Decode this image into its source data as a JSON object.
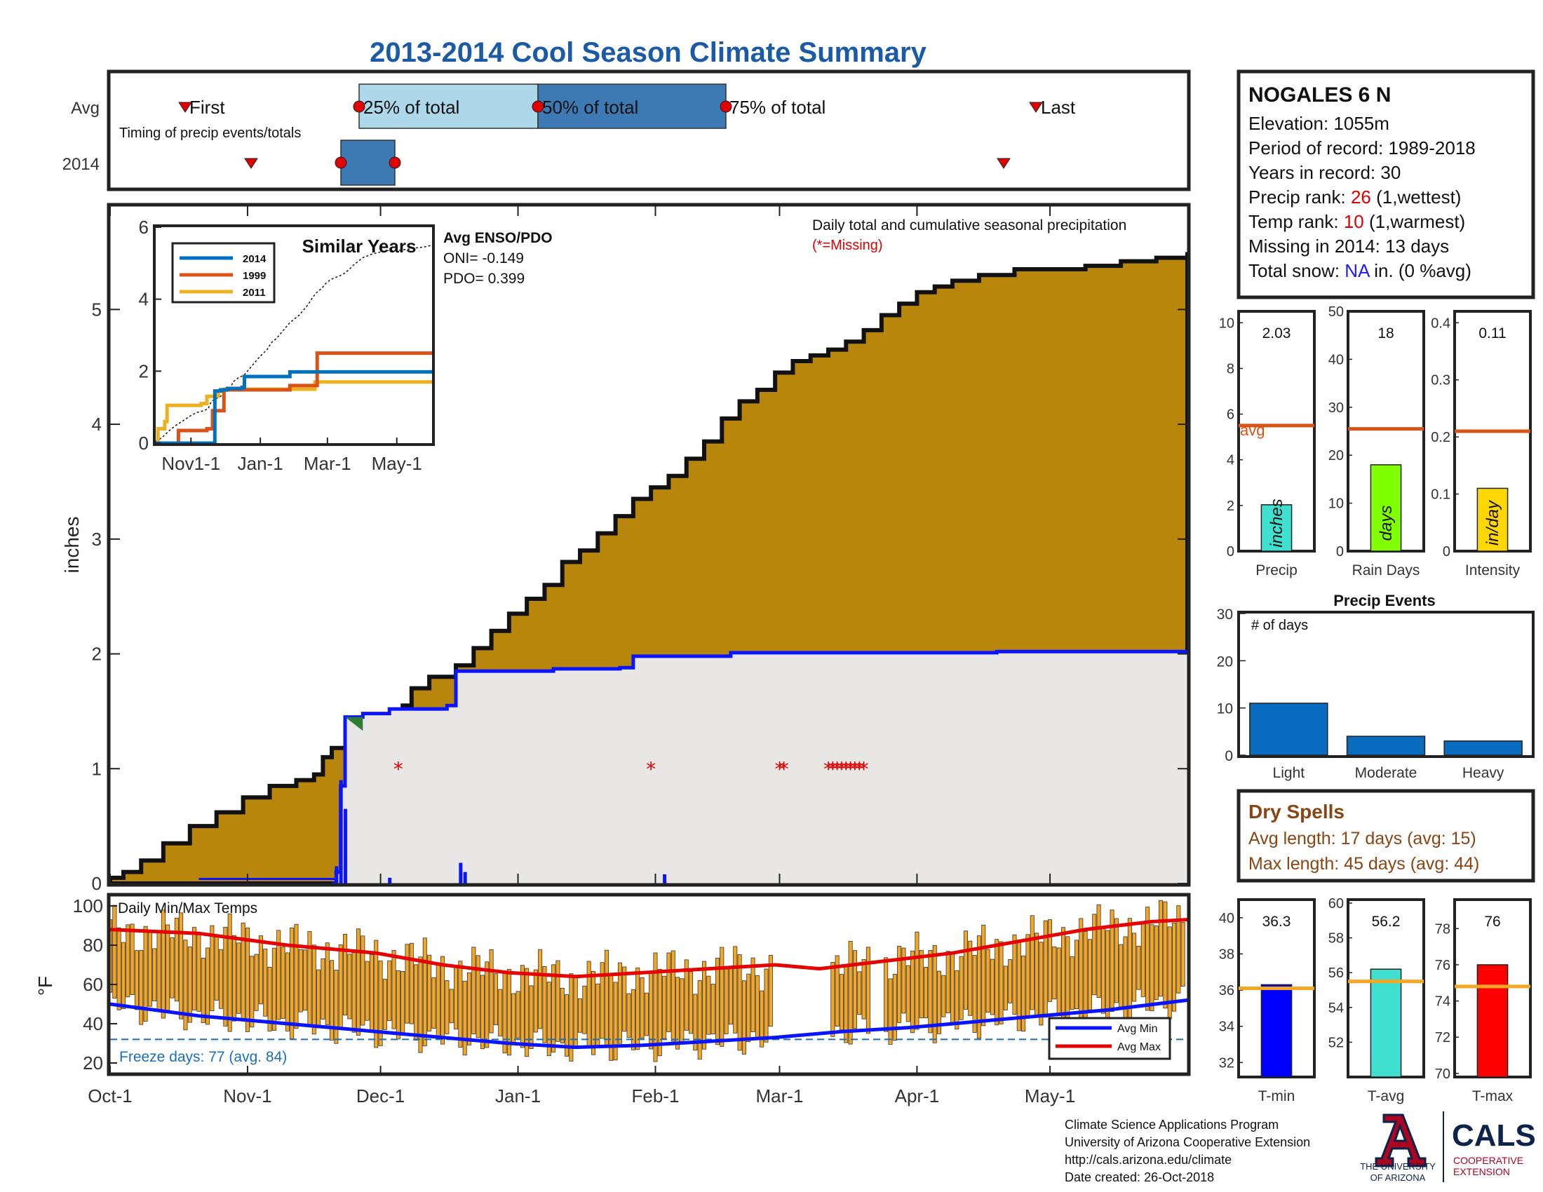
{
  "title": "2013-2014 Cool Season Climate Summary",
  "colors": {
    "title": "#1a5aa6",
    "cum_fill": "#b8860b",
    "avg_fill": "#e8e7e6",
    "avg_line": "#0a14ff",
    "temp_bar": "#f5a623",
    "max_line": "#e60000",
    "min_line": "#0a14ff",
    "freeze": "#1a6fb8",
    "missing": "#e00000",
    "avg_ref": "#d95319",
    "tavg_ref": "#f5a623",
    "rank": "#e00000",
    "snow": "#1a1aff",
    "dry": "#8b4513"
  },
  "timing": {
    "row_avg": "Avg",
    "row_year": "2014",
    "label_first": "First",
    "label_last": "Last",
    "label_25": "25% of total",
    "label_50": "50% of total",
    "label_75": "75% of total",
    "caption": "Timing of precip events/totals"
  },
  "main": {
    "ylabel": "inches",
    "yticks": [
      "0",
      "1",
      "2",
      "3",
      "4",
      "5"
    ],
    "caption": "Daily total and cumulative seasonal precipitation",
    "missing_note": "(*=Missing)",
    "enso_title": "Avg ENSO/PDO",
    "oni": "ONI= -0.149",
    "pdo": "PDO= 0.399"
  },
  "inset": {
    "title": "Similar Years",
    "legend": [
      "2014",
      "1999",
      "2011"
    ],
    "yticks": [
      "0",
      "2",
      "4",
      "6"
    ],
    "xticks": [
      "Nov1-1",
      "Jan-1",
      "Mar-1",
      "May-1"
    ]
  },
  "temps": {
    "label": "Daily Min/Max Temps",
    "ylabel": "°F",
    "yticks": [
      "20",
      "40",
      "60",
      "80",
      "100"
    ],
    "freeze": "Freeze days: 77 (avg. 84)",
    "legend_min": "Avg Min",
    "legend_max": "Avg Max"
  },
  "xaxis": [
    "Oct-1",
    "Nov-1",
    "Dec-1",
    "Jan-1",
    "Feb-1",
    "Mar-1",
    "Apr-1",
    "May-1"
  ],
  "station": {
    "name": "NOGALES 6 N",
    "elevation": "Elevation: 1055m",
    "period": "Period of record: 1989-2018",
    "years": "Years in record: 30",
    "precip_rank_label": "Precip rank: ",
    "precip_rank_value": "26",
    "precip_rank_note": " (1,wettest)",
    "temp_rank_label": "Temp rank: ",
    "temp_rank_value": "10",
    "temp_rank_note": " (1,warmest)",
    "missing": "Missing in 2014: 13 days",
    "snow_label": "Total snow: ",
    "snow_value": "NA",
    "snow_note": " in. (0 %avg)"
  },
  "mini": {
    "precip": {
      "label": "Precip",
      "value": "2.03",
      "unit": "inches",
      "avg_label": "avg",
      "yticks": [
        "0",
        "2",
        "4",
        "6",
        "8",
        "10"
      ]
    },
    "raindays": {
      "label": "Rain Days",
      "value": "18",
      "unit": "days",
      "yticks": [
        "0",
        "10",
        "20",
        "30",
        "40",
        "50"
      ]
    },
    "intensity": {
      "label": "Intensity",
      "value": "0.11",
      "unit": "in/day",
      "yticks": [
        "0",
        "0.1",
        "0.2",
        "0.3",
        "0.4"
      ]
    }
  },
  "events": {
    "title": "Precip Events",
    "ylabel": "# of days",
    "yticks": [
      "0",
      "10",
      "20",
      "30"
    ],
    "categories": [
      "Light",
      "Moderate",
      "Heavy"
    ]
  },
  "dry": {
    "title": "Dry Spells",
    "avg": "Avg length: 17 days (avg: 15)",
    "max": "Max length: 45 days (avg: 44)"
  },
  "tstats": {
    "tmin": {
      "label": "T-min",
      "value": "36.3",
      "yticks": [
        "32",
        "34",
        "36",
        "38",
        "40"
      ]
    },
    "tavg": {
      "label": "T-avg",
      "value": "56.2",
      "yticks": [
        "52",
        "54",
        "56",
        "58",
        "60"
      ]
    },
    "tmax": {
      "label": "T-max",
      "value": "76",
      "yticks": [
        "70",
        "72",
        "74",
        "76",
        "78"
      ]
    }
  },
  "footer": {
    "line1": "Climate Science Applications Program",
    "line2": "University of Arizona Cooperative Extension",
    "line3": "http://cals.arizona.edu/climate",
    "line4": " Date created: 26-Oct-2018",
    "ua_line1": "THE UNIVERSITY",
    "ua_line2": "OF ARIZONA",
    "cals": "CALS",
    "cals_sub1": "COOPERATIVE",
    "cals_sub2": "EXTENSION"
  },
  "chart_data": [
    {
      "type": "area",
      "name": "cumulative",
      "x_unit": "day of season (0 = Oct-1)",
      "ylim": [
        0,
        5.9
      ],
      "xlim": [
        0,
        243
      ],
      "avg_cumulative": [
        [
          0,
          0.05
        ],
        [
          3,
          0.1
        ],
        [
          7,
          0.2
        ],
        [
          12,
          0.35
        ],
        [
          18,
          0.5
        ],
        [
          24,
          0.62
        ],
        [
          30,
          0.75
        ],
        [
          36,
          0.85
        ],
        [
          42,
          0.9
        ],
        [
          46,
          0.95
        ],
        [
          48,
          1.1
        ],
        [
          50,
          1.18
        ],
        [
          54,
          1.25
        ],
        [
          58,
          1.32
        ],
        [
          62,
          1.42
        ],
        [
          66,
          1.55
        ],
        [
          68,
          1.7
        ],
        [
          72,
          1.8
        ],
        [
          78,
          1.9
        ],
        [
          82,
          2.05
        ],
        [
          86,
          2.2
        ],
        [
          90,
          2.35
        ],
        [
          94,
          2.48
        ],
        [
          98,
          2.6
        ],
        [
          102,
          2.8
        ],
        [
          106,
          2.9
        ],
        [
          110,
          3.05
        ],
        [
          114,
          3.2
        ],
        [
          118,
          3.35
        ],
        [
          122,
          3.45
        ],
        [
          126,
          3.55
        ],
        [
          130,
          3.7
        ],
        [
          134,
          3.85
        ],
        [
          138,
          4.05
        ],
        [
          142,
          4.2
        ],
        [
          146,
          4.3
        ],
        [
          150,
          4.45
        ],
        [
          154,
          4.55
        ],
        [
          158,
          4.6
        ],
        [
          162,
          4.65
        ],
        [
          166,
          4.72
        ],
        [
          170,
          4.82
        ],
        [
          174,
          4.95
        ],
        [
          178,
          5.05
        ],
        [
          182,
          5.15
        ],
        [
          186,
          5.2
        ],
        [
          190,
          5.25
        ],
        [
          196,
          5.3
        ],
        [
          204,
          5.35
        ],
        [
          212,
          5.35
        ],
        [
          220,
          5.38
        ],
        [
          228,
          5.42
        ],
        [
          236,
          5.45
        ],
        [
          243,
          5.5
        ]
      ],
      "cumulative_2014": [
        [
          0,
          0
        ],
        [
          30,
          0
        ],
        [
          50,
          0
        ],
        [
          51,
          0.1
        ],
        [
          52,
          0.85
        ],
        [
          53,
          1.45
        ],
        [
          57,
          1.48
        ],
        [
          63,
          1.52
        ],
        [
          76,
          1.55
        ],
        [
          78,
          1.85
        ],
        [
          100,
          1.87
        ],
        [
          115,
          1.88
        ],
        [
          118,
          1.98
        ],
        [
          140,
          2.01
        ],
        [
          200,
          2.02
        ],
        [
          243,
          2.03
        ]
      ],
      "daily_2014": [
        [
          51,
          0.15
        ],
        [
          52,
          0.9
        ],
        [
          53,
          0.65
        ],
        [
          63,
          0.05
        ],
        [
          79,
          0.18
        ],
        [
          80,
          0.1
        ],
        [
          125,
          0.08
        ]
      ],
      "missing_days": [
        65,
        122,
        151,
        152,
        162,
        163,
        164,
        165,
        166,
        167,
        168,
        169,
        170
      ]
    },
    {
      "type": "line",
      "name": "similar years",
      "x_unit": "day of season",
      "ylim": [
        0,
        6
      ],
      "series": [
        {
          "name": "2014",
          "values": [
            [
              0,
              0
            ],
            [
              50,
              0
            ],
            [
              52,
              1.45
            ],
            [
              57,
              1.48
            ],
            [
              63,
              1.52
            ],
            [
              76,
              1.55
            ],
            [
              78,
              1.85
            ],
            [
              118,
              1.98
            ],
            [
              243,
              2.03
            ]
          ]
        },
        {
          "name": "1999",
          "values": [
            [
              0,
              0
            ],
            [
              18,
              0
            ],
            [
              20,
              0.35
            ],
            [
              45,
              0.4
            ],
            [
              50,
              0.9
            ],
            [
              60,
              1.48
            ],
            [
              118,
              1.6
            ],
            [
              140,
              1.6
            ],
            [
              142,
              2.5
            ],
            [
              243,
              2.55
            ]
          ]
        },
        {
          "name": "2011",
          "values": [
            [
              0,
              0
            ],
            [
              2,
              0.4
            ],
            [
              8,
              0.6
            ],
            [
              10,
              1.05
            ],
            [
              40,
              1.1
            ],
            [
              45,
              1.3
            ],
            [
              55,
              1.45
            ],
            [
              60,
              1.5
            ],
            [
              135,
              1.5
            ],
            [
              140,
              1.7
            ],
            [
              243,
              1.7
            ]
          ]
        }
      ]
    },
    {
      "type": "bar",
      "name": "precip events",
      "categories": [
        "Light",
        "Moderate",
        "Heavy"
      ],
      "values": [
        11,
        4,
        3
      ],
      "ylim": [
        0,
        30
      ]
    },
    {
      "type": "bar",
      "name": "season totals",
      "categories": [
        "Precip",
        "Rain Days",
        "Intensity"
      ],
      "values": [
        2.03,
        18,
        0.11
      ],
      "avg": [
        5.5,
        25.5,
        0.21
      ]
    },
    {
      "type": "bar",
      "name": "temperature stats",
      "categories": [
        "T-min",
        "T-avg",
        "T-max"
      ],
      "values": [
        36.3,
        56.2,
        76
      ],
      "avg": [
        36.1,
        55.5,
        74.8
      ]
    },
    {
      "type": "line",
      "name": "daily temps",
      "ylim": [
        15,
        105
      ],
      "freeze_line": 32,
      "avg_max": [
        [
          0,
          88
        ],
        [
          20,
          86
        ],
        [
          40,
          80
        ],
        [
          60,
          76
        ],
        [
          75,
          70
        ],
        [
          90,
          66
        ],
        [
          105,
          64
        ],
        [
          120,
          66
        ],
        [
          135,
          68
        ],
        [
          150,
          70
        ],
        [
          160,
          68
        ],
        [
          175,
          72
        ],
        [
          190,
          76
        ],
        [
          205,
          82
        ],
        [
          220,
          88
        ],
        [
          235,
          92
        ],
        [
          243,
          93
        ]
      ],
      "avg_min": [
        [
          0,
          50
        ],
        [
          20,
          44
        ],
        [
          40,
          40
        ],
        [
          60,
          36
        ],
        [
          75,
          33
        ],
        [
          90,
          30
        ],
        [
          105,
          28
        ],
        [
          120,
          29
        ],
        [
          135,
          31
        ],
        [
          150,
          33
        ],
        [
          165,
          36
        ],
        [
          180,
          38
        ],
        [
          195,
          41
        ],
        [
          210,
          44
        ],
        [
          225,
          47
        ],
        [
          243,
          52
        ]
      ]
    }
  ]
}
